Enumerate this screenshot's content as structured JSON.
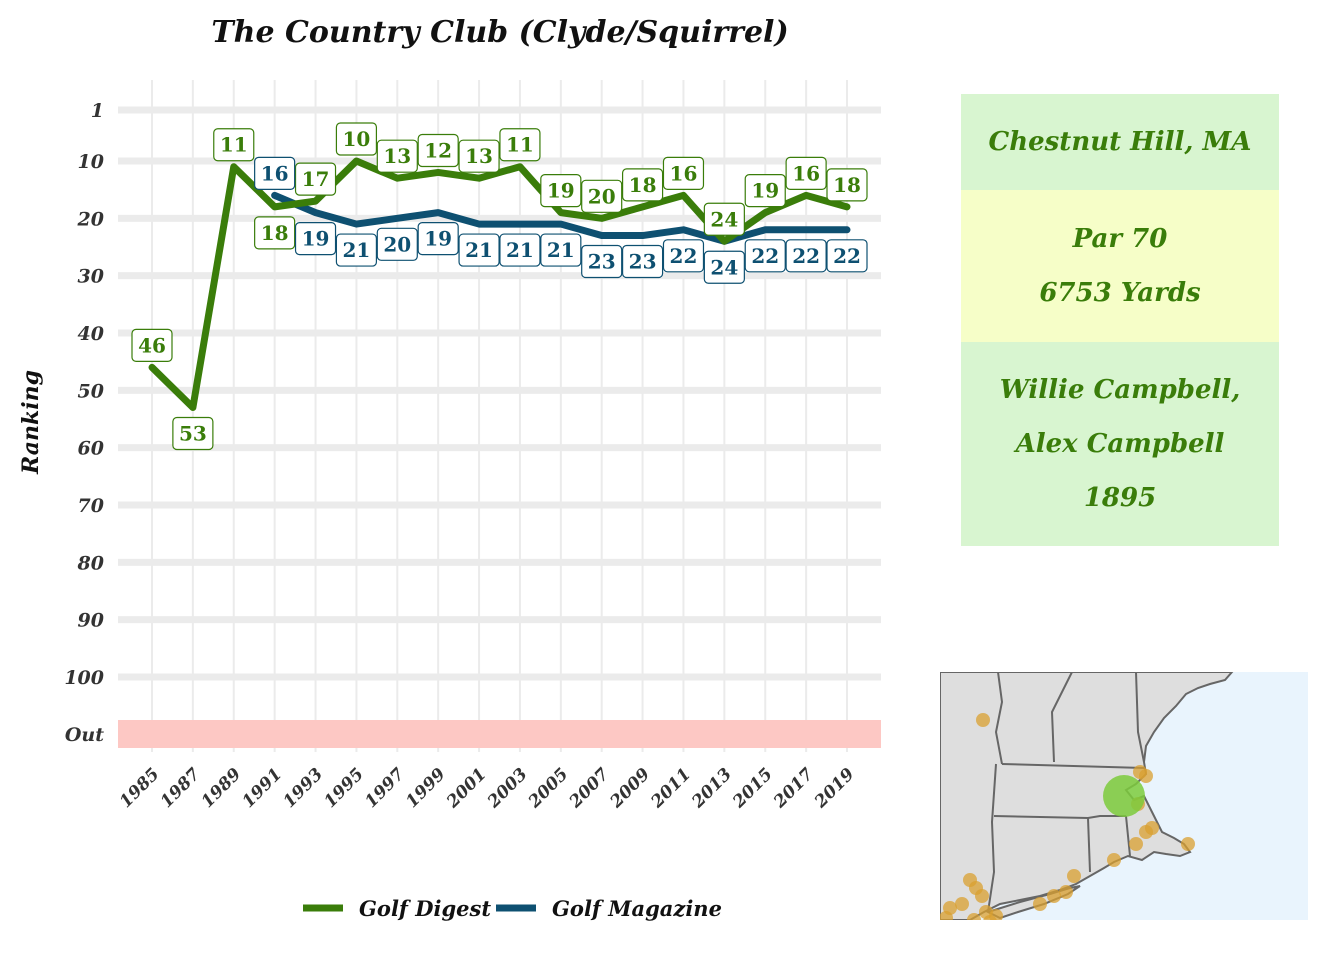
{
  "chart_data": {
    "type": "line",
    "title": "The Country Club (Clyde/Squirrel)",
    "ylabel": "Ranking",
    "xlabel": "",
    "x": [
      1985,
      1987,
      1989,
      1991,
      1993,
      1995,
      1997,
      1999,
      2001,
      2003,
      2005,
      2007,
      2009,
      2011,
      2013,
      2015,
      2017,
      2019
    ],
    "x_ticks": [
      "1985",
      "1987",
      "1989",
      "1991",
      "1993",
      "1995",
      "1997",
      "1999",
      "2001",
      "2003",
      "2005",
      "2007",
      "2009",
      "2011",
      "2013",
      "2015",
      "2017",
      "2019"
    ],
    "y_ticks": [
      "1",
      "10",
      "20",
      "30",
      "40",
      "50",
      "60",
      "70",
      "80",
      "90",
      "100"
    ],
    "y_out_label": "Out",
    "y_reversed": true,
    "ylim": [
      1,
      100
    ],
    "grid": true,
    "legend_position": "bottom",
    "series": [
      {
        "name": "Golf Digest",
        "color": "#3a7d0a",
        "values": [
          46,
          53,
          11,
          18,
          17,
          10,
          13,
          12,
          13,
          11,
          19,
          20,
          18,
          16,
          24,
          19,
          16,
          18
        ]
      },
      {
        "name": "Golf Magazine",
        "color": "#0e5071",
        "values": [
          null,
          null,
          null,
          16,
          19,
          21,
          20,
          19,
          21,
          21,
          21,
          23,
          23,
          22,
          24,
          22,
          22,
          22
        ]
      }
    ]
  },
  "info": {
    "location": "Chestnut Hill, MA",
    "par": "Par 70",
    "yards": "6753 Yards",
    "designer_line1": "Willie Campbell,",
    "designer_line2": "Alex Campbell",
    "year": "1895",
    "colors": {
      "green_box": "#d8f5d0",
      "yellow_box": "#f6fec8",
      "text": "#3a7d0a"
    }
  },
  "map": {
    "water_color": "#e9f4fd",
    "land_color": "#dedede",
    "marker_color": "#d9a030",
    "highlight_color": "#7ccb3c"
  }
}
